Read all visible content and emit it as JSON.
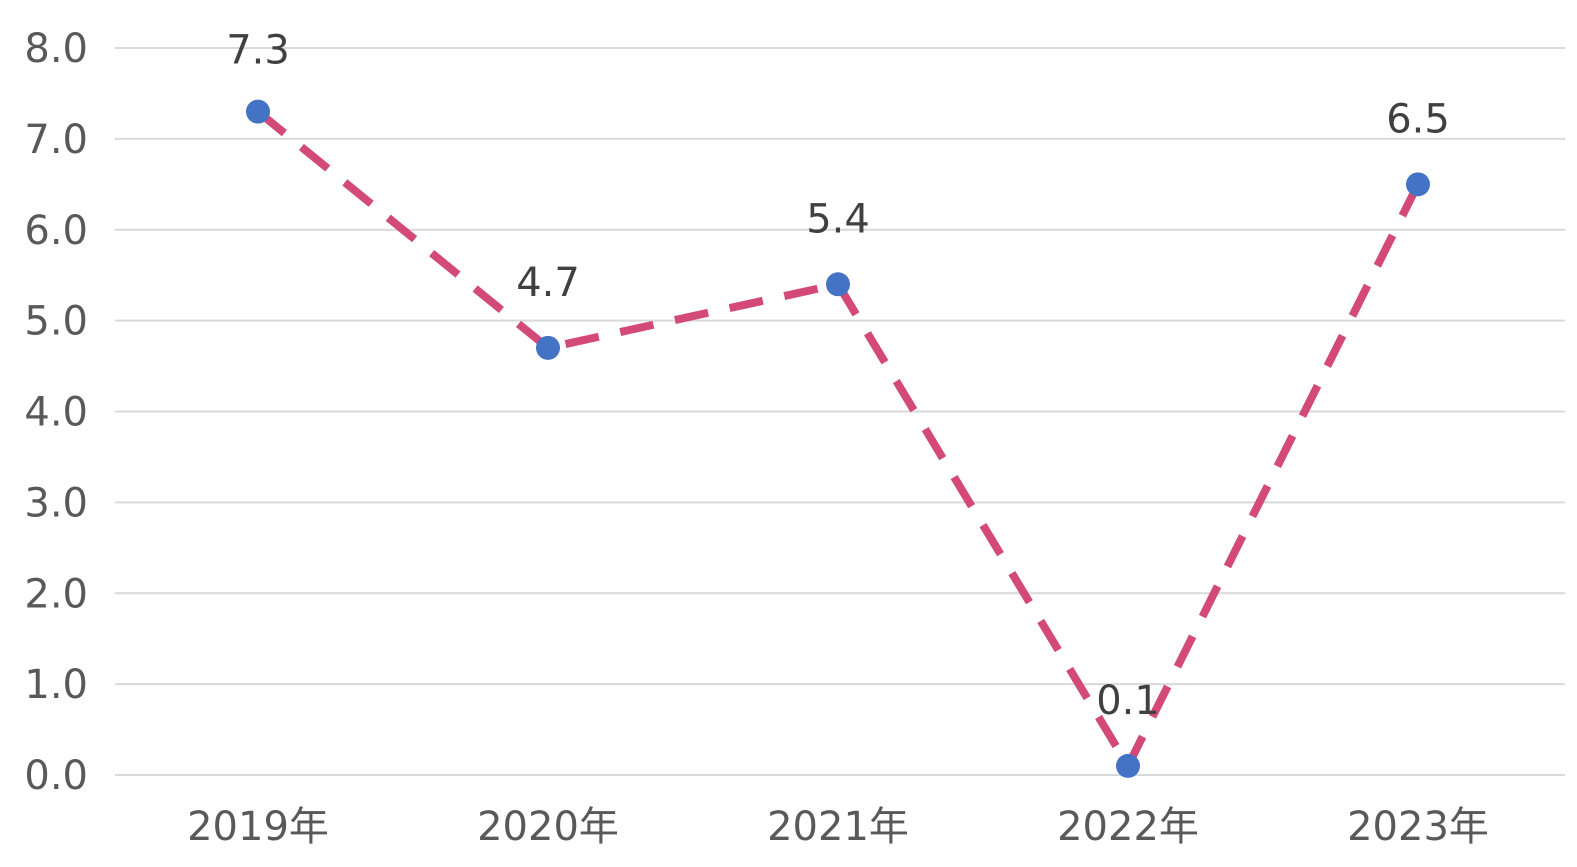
{
  "chart_data": {
    "type": "line",
    "categories": [
      "2019年",
      "2020年",
      "2021年",
      "2022年",
      "2023年"
    ],
    "series": [
      {
        "values": [
          7.3,
          4.7,
          5.4,
          0.1,
          6.5
        ]
      }
    ],
    "data_labels": [
      "7.3",
      "4.7",
      "5.4",
      "0.1",
      "6.5"
    ],
    "yticks": [
      "0.0",
      "1.0",
      "2.0",
      "3.0",
      "4.0",
      "5.0",
      "6.0",
      "7.0",
      "8.0"
    ],
    "ylim": [
      0,
      8
    ],
    "grid": true,
    "line_style": "dashed",
    "colors": {
      "line": "#d34a78",
      "marker": "#4472c4",
      "grid": "#d9d9d9"
    }
  }
}
